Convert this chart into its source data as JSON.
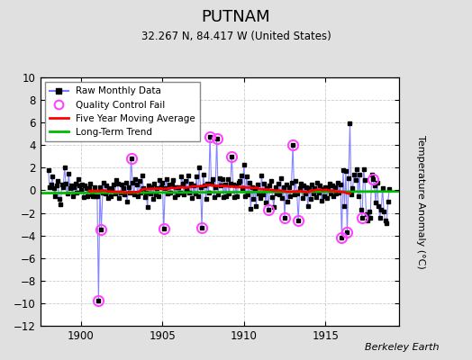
{
  "title": "PUTNAM",
  "subtitle": "32.267 N, 84.417 W (United States)",
  "ylabel": "Temperature Anomaly (°C)",
  "credit": "Berkeley Earth",
  "xlim": [
    1897.5,
    1919.5
  ],
  "ylim": [
    -12,
    10
  ],
  "yticks": [
    -12,
    -10,
    -8,
    -6,
    -4,
    -2,
    0,
    2,
    4,
    6,
    8,
    10
  ],
  "xticks": [
    1900,
    1905,
    1910,
    1915
  ],
  "fig_bg_color": "#e0e0e0",
  "plot_bg_color": "#ffffff",
  "raw_line_color": "#7777ff",
  "raw_dot_color": "#000000",
  "qc_fail_color": "#ff44ff",
  "moving_avg_color": "#ff0000",
  "trend_color": "#00bb00",
  "grid_color": "#cccccc",
  "raw_data": [
    [
      1898.0,
      1.8
    ],
    [
      1898.083,
      0.3
    ],
    [
      1898.167,
      0.5
    ],
    [
      1898.25,
      1.2
    ],
    [
      1898.333,
      0.2
    ],
    [
      1898.417,
      -0.5
    ],
    [
      1898.5,
      0.4
    ],
    [
      1898.583,
      0.8
    ],
    [
      1898.667,
      -0.8
    ],
    [
      1898.75,
      -1.2
    ],
    [
      1898.833,
      0.5
    ],
    [
      1898.917,
      0.3
    ],
    [
      1899.0,
      2.0
    ],
    [
      1899.083,
      0.6
    ],
    [
      1899.167,
      -0.3
    ],
    [
      1899.25,
      1.5
    ],
    [
      1899.333,
      0.2
    ],
    [
      1899.417,
      0.4
    ],
    [
      1899.5,
      -0.5
    ],
    [
      1899.583,
      0.3
    ],
    [
      1899.667,
      0.6
    ],
    [
      1899.75,
      -0.2
    ],
    [
      1899.833,
      1.0
    ],
    [
      1899.917,
      0.4
    ],
    [
      1900.0,
      0.0
    ],
    [
      1900.083,
      0.5
    ],
    [
      1900.167,
      -0.6
    ],
    [
      1900.25,
      0.4
    ],
    [
      1900.333,
      0.2
    ],
    [
      1900.417,
      -0.5
    ],
    [
      1900.5,
      0.2
    ],
    [
      1900.583,
      0.6
    ],
    [
      1900.667,
      -0.4
    ],
    [
      1900.75,
      -0.5
    ],
    [
      1900.833,
      0.3
    ],
    [
      1900.917,
      -0.5
    ],
    [
      1901.0,
      -0.5
    ],
    [
      1901.083,
      -9.8
    ],
    [
      1901.167,
      0.3
    ],
    [
      1901.25,
      -3.5
    ],
    [
      1901.333,
      -0.2
    ],
    [
      1901.417,
      0.7
    ],
    [
      1901.5,
      -0.3
    ],
    [
      1901.583,
      0.4
    ],
    [
      1901.667,
      -0.7
    ],
    [
      1901.75,
      0.2
    ],
    [
      1901.833,
      -0.5
    ],
    [
      1901.917,
      0.1
    ],
    [
      1902.0,
      0.5
    ],
    [
      1902.083,
      -0.3
    ],
    [
      1902.167,
      0.9
    ],
    [
      1902.25,
      0.6
    ],
    [
      1902.333,
      -0.7
    ],
    [
      1902.417,
      -0.2
    ],
    [
      1902.5,
      0.5
    ],
    [
      1902.583,
      0.2
    ],
    [
      1902.667,
      -0.4
    ],
    [
      1902.75,
      0.7
    ],
    [
      1902.833,
      -1.0
    ],
    [
      1902.917,
      0.3
    ],
    [
      1903.0,
      -0.2
    ],
    [
      1903.083,
      2.8
    ],
    [
      1903.167,
      0.7
    ],
    [
      1903.25,
      -0.4
    ],
    [
      1903.333,
      1.0
    ],
    [
      1903.417,
      0.5
    ],
    [
      1903.5,
      -0.5
    ],
    [
      1903.583,
      0.8
    ],
    [
      1903.667,
      -0.2
    ],
    [
      1903.75,
      1.3
    ],
    [
      1903.833,
      0.2
    ],
    [
      1903.917,
      -0.6
    ],
    [
      1904.0,
      -0.2
    ],
    [
      1904.083,
      -1.5
    ],
    [
      1904.167,
      0.4
    ],
    [
      1904.25,
      -0.3
    ],
    [
      1904.333,
      0.3
    ],
    [
      1904.417,
      -0.8
    ],
    [
      1904.5,
      0.6
    ],
    [
      1904.583,
      -0.4
    ],
    [
      1904.667,
      0.2
    ],
    [
      1904.75,
      -0.5
    ],
    [
      1904.833,
      0.9
    ],
    [
      1904.917,
      0.3
    ],
    [
      1905.0,
      0.7
    ],
    [
      1905.083,
      -3.4
    ],
    [
      1905.167,
      0.2
    ],
    [
      1905.25,
      1.0
    ],
    [
      1905.333,
      -0.3
    ],
    [
      1905.417,
      0.5
    ],
    [
      1905.5,
      -0.2
    ],
    [
      1905.583,
      0.5
    ],
    [
      1905.667,
      0.9
    ],
    [
      1905.75,
      -0.6
    ],
    [
      1905.833,
      0.3
    ],
    [
      1905.917,
      -0.4
    ],
    [
      1906.0,
      0.3
    ],
    [
      1906.083,
      -0.2
    ],
    [
      1906.167,
      1.2
    ],
    [
      1906.25,
      0.6
    ],
    [
      1906.333,
      -0.4
    ],
    [
      1906.417,
      0.8
    ],
    [
      1906.5,
      0.1
    ],
    [
      1906.583,
      1.3
    ],
    [
      1906.667,
      -0.2
    ],
    [
      1906.75,
      0.6
    ],
    [
      1906.833,
      -0.7
    ],
    [
      1906.917,
      0.4
    ],
    [
      1907.0,
      -0.3
    ],
    [
      1907.083,
      1.2
    ],
    [
      1907.167,
      -0.5
    ],
    [
      1907.25,
      2.0
    ],
    [
      1907.333,
      0.3
    ],
    [
      1907.417,
      -3.3
    ],
    [
      1907.5,
      1.4
    ],
    [
      1907.583,
      0.4
    ],
    [
      1907.667,
      -0.8
    ],
    [
      1907.75,
      0.6
    ],
    [
      1907.833,
      -0.2
    ],
    [
      1907.917,
      4.7
    ],
    [
      1908.0,
      0.6
    ],
    [
      1908.083,
      1.0
    ],
    [
      1908.167,
      -0.6
    ],
    [
      1908.25,
      0.3
    ],
    [
      1908.333,
      4.6
    ],
    [
      1908.417,
      -0.4
    ],
    [
      1908.5,
      1.1
    ],
    [
      1908.583,
      0.4
    ],
    [
      1908.667,
      1.0
    ],
    [
      1908.75,
      -0.6
    ],
    [
      1908.833,
      0.5
    ],
    [
      1908.917,
      -0.5
    ],
    [
      1909.0,
      1.0
    ],
    [
      1909.083,
      -0.3
    ],
    [
      1909.167,
      0.6
    ],
    [
      1909.25,
      3.0
    ],
    [
      1909.333,
      0.5
    ],
    [
      1909.417,
      -0.6
    ],
    [
      1909.5,
      0.4
    ],
    [
      1909.583,
      -0.5
    ],
    [
      1909.667,
      0.7
    ],
    [
      1909.75,
      0.8
    ],
    [
      1909.833,
      1.3
    ],
    [
      1909.917,
      0.2
    ],
    [
      1910.0,
      2.3
    ],
    [
      1910.083,
      -0.5
    ],
    [
      1910.167,
      1.2
    ],
    [
      1910.25,
      -0.4
    ],
    [
      1910.333,
      0.7
    ],
    [
      1910.417,
      -1.6
    ],
    [
      1910.5,
      0.3
    ],
    [
      1910.583,
      -0.8
    ],
    [
      1910.667,
      0.2
    ],
    [
      1910.75,
      -1.4
    ],
    [
      1910.833,
      0.5
    ],
    [
      1910.917,
      -0.3
    ],
    [
      1911.0,
      -0.7
    ],
    [
      1911.083,
      1.3
    ],
    [
      1911.167,
      -0.4
    ],
    [
      1911.25,
      0.6
    ],
    [
      1911.333,
      -1.1
    ],
    [
      1911.417,
      0.2
    ],
    [
      1911.5,
      -1.7
    ],
    [
      1911.583,
      0.4
    ],
    [
      1911.667,
      0.8
    ],
    [
      1911.75,
      -0.6
    ],
    [
      1911.833,
      -1.5
    ],
    [
      1911.917,
      0.3
    ],
    [
      1912.0,
      -0.3
    ],
    [
      1912.083,
      0.6
    ],
    [
      1912.167,
      -0.4
    ],
    [
      1912.25,
      1.1
    ],
    [
      1912.333,
      -0.7
    ],
    [
      1912.417,
      0.3
    ],
    [
      1912.5,
      -2.4
    ],
    [
      1912.583,
      0.5
    ],
    [
      1912.667,
      -1.0
    ],
    [
      1912.75,
      0.3
    ],
    [
      1912.833,
      -0.5
    ],
    [
      1912.917,
      0.7
    ],
    [
      1913.0,
      4.0
    ],
    [
      1913.083,
      -0.4
    ],
    [
      1913.167,
      0.8
    ],
    [
      1913.25,
      -0.3
    ],
    [
      1913.333,
      -2.7
    ],
    [
      1913.417,
      0.2
    ],
    [
      1913.5,
      0.6
    ],
    [
      1913.583,
      -0.7
    ],
    [
      1913.667,
      0.4
    ],
    [
      1913.75,
      -0.3
    ],
    [
      1913.833,
      0.3
    ],
    [
      1913.917,
      -1.4
    ],
    [
      1914.0,
      0.2
    ],
    [
      1914.083,
      -0.8
    ],
    [
      1914.167,
      0.5
    ],
    [
      1914.25,
      -0.3
    ],
    [
      1914.333,
      0.2
    ],
    [
      1914.417,
      -0.6
    ],
    [
      1914.5,
      0.7
    ],
    [
      1914.583,
      -0.2
    ],
    [
      1914.667,
      0.4
    ],
    [
      1914.75,
      -0.9
    ],
    [
      1914.833,
      0.1
    ],
    [
      1914.917,
      -0.5
    ],
    [
      1915.0,
      0.3
    ],
    [
      1915.083,
      -0.7
    ],
    [
      1915.167,
      0.2
    ],
    [
      1915.25,
      0.6
    ],
    [
      1915.333,
      -0.3
    ],
    [
      1915.417,
      0.4
    ],
    [
      1915.5,
      -0.5
    ],
    [
      1915.583,
      0.3
    ],
    [
      1915.667,
      -0.3
    ],
    [
      1915.75,
      0.7
    ],
    [
      1915.833,
      -0.2
    ],
    [
      1915.917,
      0.5
    ],
    [
      1916.0,
      -4.2
    ],
    [
      1916.083,
      1.8
    ],
    [
      1916.167,
      -1.4
    ],
    [
      1916.25,
      1.7
    ],
    [
      1916.333,
      -3.7
    ],
    [
      1916.417,
      1.1
    ],
    [
      1916.5,
      5.9
    ],
    [
      1916.583,
      -0.4
    ],
    [
      1916.667,
      0.2
    ],
    [
      1916.75,
      1.4
    ],
    [
      1916.833,
      0.9
    ],
    [
      1916.917,
      1.9
    ],
    [
      1917.0,
      -0.5
    ],
    [
      1917.083,
      1.4
    ],
    [
      1917.167,
      -1.7
    ],
    [
      1917.25,
      -2.4
    ],
    [
      1917.333,
      1.9
    ],
    [
      1917.417,
      0.9
    ],
    [
      1917.5,
      -2.1
    ],
    [
      1917.583,
      -2.7
    ],
    [
      1917.667,
      -1.9
    ],
    [
      1917.75,
      -2.4
    ],
    [
      1917.833,
      1.4
    ],
    [
      1917.917,
      1.0
    ],
    [
      1918.0,
      0.4
    ],
    [
      1918.083,
      -1.1
    ],
    [
      1918.167,
      0.7
    ],
    [
      1918.25,
      -1.4
    ],
    [
      1918.333,
      -2.4
    ],
    [
      1918.417,
      -1.7
    ],
    [
      1918.5,
      0.2
    ],
    [
      1918.583,
      -1.9
    ],
    [
      1918.667,
      -2.7
    ],
    [
      1918.75,
      -2.9
    ],
    [
      1918.833,
      -1.0
    ],
    [
      1918.917,
      0.1
    ]
  ],
  "qc_fail_points": [
    [
      1901.083,
      -9.8
    ],
    [
      1901.25,
      -3.5
    ],
    [
      1903.083,
      2.8
    ],
    [
      1905.083,
      -3.4
    ],
    [
      1907.417,
      -3.3
    ],
    [
      1907.917,
      4.7
    ],
    [
      1908.333,
      4.6
    ],
    [
      1909.25,
      3.0
    ],
    [
      1911.5,
      -1.7
    ],
    [
      1912.5,
      -2.4
    ],
    [
      1913.0,
      4.0
    ],
    [
      1913.333,
      -2.7
    ],
    [
      1916.0,
      -4.2
    ],
    [
      1916.333,
      -3.7
    ],
    [
      1917.25,
      -2.4
    ],
    [
      1917.917,
      1.0
    ]
  ],
  "trend_x": [
    1897.5,
    1919.5
  ],
  "trend_y": [
    -0.25,
    -0.1
  ]
}
